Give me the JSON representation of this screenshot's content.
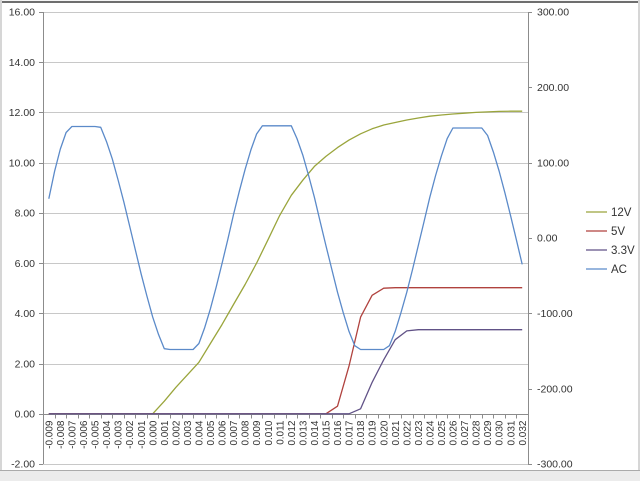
{
  "chart_data": {
    "type": "line",
    "title": "",
    "xlabel": "",
    "ylabel": "",
    "grid": true,
    "legend_position": "right",
    "colors": {
      "gridline": "#c8c8c8",
      "axis_line": "#8c8c8c",
      "tick_text": "#333333",
      "background": "#ffffff"
    },
    "left_axis": {
      "min": -2,
      "max": 16,
      "step": 2,
      "tick_labels": [
        "16.00",
        "14.00",
        "12.00",
        "10.00",
        "8.00",
        "6.00",
        "4.00",
        "2.00",
        "0.00",
        "-2.00"
      ],
      "tick_values": [
        16,
        14,
        12,
        10,
        8,
        6,
        4,
        2,
        0,
        -2
      ]
    },
    "right_axis": {
      "min": -300,
      "max": 300,
      "step": 100,
      "tick_labels": [
        "300.00",
        "200.00",
        "100.00",
        "0.00",
        "-100.00",
        "-200.00",
        "-300.00"
      ],
      "tick_values": [
        300,
        200,
        100,
        0,
        -100,
        -200,
        -300
      ]
    },
    "x_axis": {
      "min": -0.009,
      "max": 0.032,
      "step": 0.001,
      "categories": [
        "-0.009",
        "-0.008",
        "-0.007",
        "-0.006",
        "-0.005",
        "-0.004",
        "-0.003",
        "-0.002",
        "-0.001",
        "0.000",
        "0.001",
        "0.002",
        "0.003",
        "0.004",
        "0.005",
        "0.006",
        "0.007",
        "0.008",
        "0.009",
        "0.010",
        "0.011",
        "0.012",
        "0.013",
        "0.014",
        "0.015",
        "0.016",
        "0.017",
        "0.018",
        "0.019",
        "0.020",
        "0.021",
        "0.022",
        "0.023",
        "0.024",
        "0.025",
        "0.026",
        "0.027",
        "0.028",
        "0.029",
        "0.030",
        "0.031",
        "0.032"
      ]
    },
    "series": [
      {
        "name": "12V",
        "color": "#9aa53c",
        "axis": "left",
        "x_start": -0.009,
        "x_step": 0.001,
        "values": [
          0,
          0,
          0,
          0,
          0,
          0,
          0,
          0,
          0,
          0,
          0.5,
          1.05,
          1.55,
          2.05,
          2.8,
          3.55,
          4.35,
          5.15,
          6,
          6.95,
          7.9,
          8.7,
          9.3,
          9.85,
          10.25,
          10.6,
          10.9,
          11.15,
          11.35,
          11.5,
          11.6,
          11.7,
          11.78,
          11.85,
          11.9,
          11.94,
          11.97,
          12,
          12.02,
          12.04,
          12.05,
          12.05
        ]
      },
      {
        "name": "5V",
        "color": "#b0423e",
        "axis": "left",
        "x_start": -0.009,
        "x_step": 0.001,
        "values": [
          0,
          0,
          0,
          0,
          0,
          0,
          0,
          0,
          0,
          0,
          0,
          0,
          0,
          0,
          0,
          0,
          0,
          0,
          0,
          0,
          0,
          0,
          0,
          0,
          0,
          0.3,
          1.9,
          3.85,
          4.72,
          5,
          5.02,
          5.02,
          5.02,
          5.02,
          5.02,
          5.02,
          5.02,
          5.02,
          5.02,
          5.02,
          5.02,
          5.02
        ]
      },
      {
        "name": "3.3V",
        "color": "#615287",
        "axis": "left",
        "x_start": -0.009,
        "x_step": 0.001,
        "values": [
          0,
          0,
          0,
          0,
          0,
          0,
          0,
          0,
          0,
          0,
          0,
          0,
          0,
          0,
          0,
          0,
          0,
          0,
          0,
          0,
          0,
          0,
          0,
          0,
          0,
          0,
          0,
          0.2,
          1.25,
          2.15,
          2.95,
          3.3,
          3.35,
          3.35,
          3.35,
          3.35,
          3.35,
          3.35,
          3.35,
          3.35,
          3.35,
          3.35
        ]
      },
      {
        "name": "AC",
        "color": "#5b8ac9",
        "axis": "right",
        "x_start": -0.009,
        "x_step": 0.0005,
        "values": [
          52,
          88,
          118,
          140,
          148,
          148,
          148,
          148,
          148,
          147,
          128,
          105,
          77,
          48,
          16,
          -16,
          -48,
          -77,
          -105,
          -128,
          -147,
          -148,
          -148,
          -148,
          -148,
          -148,
          -140,
          -119,
          -94,
          -65,
          -34,
          -2,
          31,
          62,
          91,
          117,
          138,
          149,
          149,
          149,
          149,
          149,
          149,
          132,
          110,
          83,
          54,
          22,
          -10,
          -41,
          -72,
          -99,
          -124,
          -143,
          -148,
          -148,
          -148,
          -148,
          -148,
          -143,
          -124,
          -99,
          -72,
          -42,
          -10,
          22,
          54,
          83,
          109,
          132,
          146,
          146,
          146,
          146,
          146,
          146,
          136,
          114,
          89,
          60,
          29,
          -3,
          -35
        ]
      }
    ],
    "legend": [
      {
        "label": "12V"
      },
      {
        "label": "5V"
      },
      {
        "label": "3.3V"
      },
      {
        "label": "AC"
      }
    ]
  },
  "frame": {
    "top_edge_color": "#6e6e6e",
    "side_edge_color": "#d6d6d6",
    "bottom_line_color": "#ababab",
    "bottom_band_color": "#ececec"
  }
}
